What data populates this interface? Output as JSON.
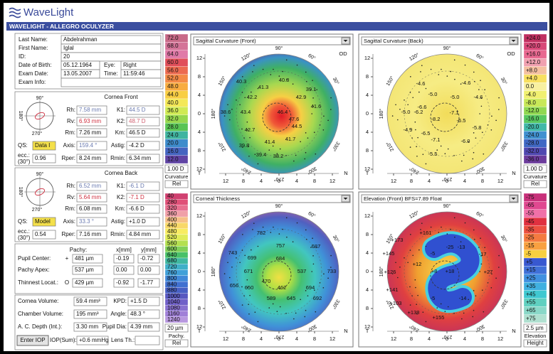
{
  "header": {
    "logo": "WaveLight",
    "app_title": "WAVELIGHT - ALLEGRO OCULYZER"
  },
  "patient": {
    "last_name": {
      "label": "Last Name:",
      "value": "Abdelrahman"
    },
    "first_name": {
      "label": "First Name:",
      "value": "Iglal"
    },
    "id": {
      "label": "ID:",
      "value": "20"
    },
    "date_of_birth": {
      "label": "Date of Birth:",
      "value": "05.12.1964"
    },
    "eye": {
      "label": "Eye:",
      "value": "Right"
    },
    "exam_date": {
      "label": "Exam Date:",
      "value": "13.05.2007"
    },
    "time": {
      "label": "Time:",
      "value": "11:59:46"
    },
    "exam_info": {
      "label": "Exam Info:"
    }
  },
  "cornea_front": {
    "title": "Cornea Front",
    "dial": {
      "top": "90°",
      "left": "180°",
      "bottom": "270°"
    },
    "ecc_unit": "(30°)",
    "fields": [
      {
        "label": "Rh:",
        "value": "7.58 mm"
      },
      {
        "label": "K1:",
        "value": "44.5 D"
      },
      {
        "label": "Rv:",
        "value": "6.93 mm"
      },
      {
        "label": "K2:",
        "value": "48.7 D"
      },
      {
        "label": "Rm:",
        "value": "7.26 mm"
      },
      {
        "label": "Km:",
        "value": "46.5 D"
      },
      {
        "label": "QS:",
        "value": "Data I"
      },
      {
        "label": "Axis:",
        "value": "159.4 °"
      },
      {
        "label": "Astig:",
        "value": "-4.2 D"
      },
      {
        "label": "ecc.:",
        "value": "0.96"
      },
      {
        "label": "Rper:",
        "value": "8.24 mm"
      },
      {
        "label": "Rmin:",
        "value": "6.34 mm"
      }
    ]
  },
  "cornea_back": {
    "title": "Cornea Back",
    "dial": {
      "top": "90°",
      "left": "180°",
      "bottom": "270°"
    },
    "ecc_unit": "(30°)",
    "fields": [
      {
        "label": "Rh:",
        "value": "6.52 mm"
      },
      {
        "label": "K1:",
        "value": "-6.1 D"
      },
      {
        "label": "Rv:",
        "value": "5.64 mm"
      },
      {
        "label": "K2:",
        "value": "-7.1 D"
      },
      {
        "label": "Rm:",
        "value": "6.08 mm"
      },
      {
        "label": "Km:",
        "value": "-6.6 D"
      },
      {
        "label": "QS:",
        "value": "Model"
      },
      {
        "label": "Axis:",
        "value": "33.3 °"
      },
      {
        "label": "Astig:",
        "value": "+1.0 D"
      },
      {
        "label": "ecc.:",
        "value": "0.54"
      },
      {
        "label": "Rper:",
        "value": "7.16 mm"
      },
      {
        "label": "Rmin:",
        "value": "4.84 mm"
      }
    ]
  },
  "pachy": {
    "headers": [
      "Pachy:",
      "x[mm]",
      "y[mm]"
    ],
    "rows": [
      {
        "label": "Pupil Center:",
        "symbol": "+",
        "pachy": "481 µm",
        "x": "-0.19",
        "y": "-0.72"
      },
      {
        "label": "Pachy Apex:",
        "pachy": "537 µm",
        "x": "0.00",
        "y": "0.00"
      },
      {
        "label": "Thinnest Locat.:",
        "symbol": "O",
        "pachy": "429 µm",
        "x": "-0.92",
        "y": "-1.77"
      }
    ]
  },
  "volume": {
    "button": "Enter IOP",
    "fields": [
      {
        "label": "Cornea Volume:",
        "value": "59.4 mm³"
      },
      {
        "label": "KPD:",
        "value": "+1.5 D"
      },
      {
        "label": "Chamber Volume:",
        "value": "195 mm³"
      },
      {
        "label": "Angle:",
        "value": "48.3 °"
      },
      {
        "label": "A. C. Depth (Int.):",
        "value": "3.30 mm"
      },
      {
        "label": "Pupil Dia:",
        "value": "4.39 mm"
      },
      {
        "label": "IOP(Sum):",
        "value": "+0.6 mmHg"
      },
      {
        "label": "Lens Th.:"
      }
    ]
  },
  "scales": [
    {
      "labels": [
        "72.0",
        "68.0",
        "64.0",
        "60.0",
        "56.0",
        "52.0",
        "48.0",
        "44.0",
        "40.0",
        "36.0",
        "32.0",
        "28.0",
        "24.0",
        "20.0",
        "16.0",
        "12.0"
      ],
      "step": "1.00 D",
      "name": "Curvature",
      "mode": "Rel"
    },
    {
      "labels": [
        "+24.0",
        "+20.0",
        "+16.0",
        "+12.0",
        "+8.0",
        "+4.0",
        "0.0",
        "-4.0",
        "-8.0",
        "-12.0",
        "-16.0",
        "-20.0",
        "-24.0",
        "-28.0",
        "-32.0",
        "-36.0"
      ],
      "step": "1.00 D",
      "name": "Curvature",
      "mode": "Rel"
    },
    {
      "labels": [
        "40",
        "280",
        "320",
        "360",
        "400",
        "440",
        "480",
        "520",
        "560",
        "600",
        "640",
        "680",
        "720",
        "760",
        "800",
        "840",
        "880",
        "1000",
        "1040",
        "1080",
        "1160",
        "1240"
      ],
      "step": "20 µm",
      "name": "Pachy.",
      "mode": "Rel"
    },
    {
      "labels": [
        "-75",
        "-65",
        "-55",
        "-45",
        "-35",
        "-25",
        "-15",
        "-5",
        "+5",
        "+15",
        "+25",
        "+35",
        "+45",
        "+55",
        "+65",
        "+75"
      ],
      "step": "2.5 µm",
      "name": "Elevation",
      "mode": "Height"
    }
  ],
  "map_common": {
    "axis_ticks": [
      "12",
      "8",
      "4",
      "0",
      "4",
      "8",
      "12"
    ],
    "temporal": "T",
    "nasal": "N",
    "eye": "OD",
    "angles": [
      "90°",
      "120°",
      "150°",
      "180°",
      "210°",
      "240°",
      "270°",
      "300°",
      "330°",
      "60°",
      "30°"
    ]
  },
  "maps": [
    {
      "title": "Sagittal Curvature (Front)",
      "values": [
        "41.3",
        "40.8",
        "39.1",
        "40.3",
        "42.2",
        "42.9",
        "38.6",
        "43.4",
        "46.4",
        "41.6",
        "47.6",
        "44.5",
        "42.7",
        "41.7",
        "41.4",
        "39.8",
        "39.4",
        "38.2"
      ]
    },
    {
      "title": "Sagittal Curvature (Back)",
      "values": [
        "-4.6",
        "-4.6",
        "-5.0",
        "-5.0",
        "-4.6",
        "-6.6",
        "-5.0",
        "-6.2",
        "-7.1",
        "-8.2",
        "-6.5",
        "-5.8",
        "-4.9",
        "-6.5",
        "-7.1",
        "-6.0",
        "-5.5"
      ]
    },
    {
      "title": "Corneal Thickness",
      "values": [
        "782",
        "757",
        "743",
        "699",
        "684",
        "687",
        "671",
        "537",
        "470",
        "462",
        "694",
        "656",
        "650",
        "589",
        "645",
        "692",
        "733"
      ]
    },
    {
      "title": "Elevation (Front)  BFS=7.89 Float",
      "values": [
        "+173",
        "+161",
        "+145",
        "+126",
        "+141",
        "+103",
        "+138",
        "+155",
        "-25",
        "-13",
        "-17",
        "-5",
        "+12",
        "+8",
        "+18",
        "+27",
        "-5",
        "-14"
      ]
    }
  ]
}
